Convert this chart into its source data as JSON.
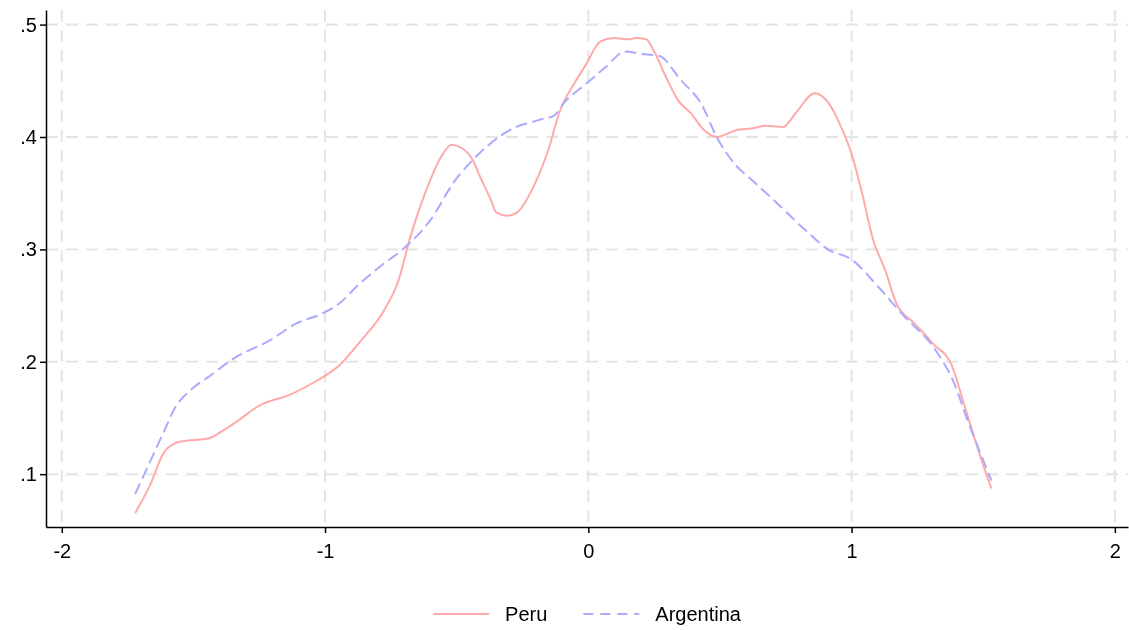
{
  "chart_data": {
    "type": "line",
    "xlim": [
      -2.06,
      2.05
    ],
    "ylim": [
      0.053,
      0.513
    ],
    "xticks": [
      -2,
      -1,
      0,
      1,
      2
    ],
    "yticks": [
      {
        "value": 0.1,
        "label": ".1"
      },
      {
        "value": 0.2,
        "label": ".2"
      },
      {
        "value": 0.3,
        "label": ".3"
      },
      {
        "value": 0.4,
        "label": ".4"
      },
      {
        "value": 0.5,
        "label": ".5"
      }
    ],
    "grid": true,
    "legend": "bottom",
    "marker": "none",
    "series": [
      {
        "name": "Peru",
        "color": "#ffaaaa",
        "line_style": "solid",
        "x": [
          -1.72,
          -1.665,
          -1.61,
          -1.55,
          -1.44,
          -1.4,
          -1.34,
          -1.25,
          -1.13,
          -1.04,
          -0.94,
          -0.87,
          -0.77,
          -0.72,
          -0.68,
          -0.62,
          -0.56,
          -0.52,
          -0.48,
          -0.44,
          -0.41,
          -0.37,
          -0.35,
          -0.31,
          -0.27,
          -0.21,
          -0.15,
          -0.11,
          -0.05,
          -0.01,
          0.046,
          0.1,
          0.15,
          0.18,
          0.22,
          0.25,
          0.3,
          0.34,
          0.39,
          0.44,
          0.49,
          0.56,
          0.63,
          0.67,
          0.74,
          0.79,
          0.86,
          0.91,
          0.96,
          1.0,
          1.04,
          1.08,
          1.13,
          1.17,
          1.24,
          1.31,
          1.38,
          1.43,
          1.5,
          1.53
        ],
        "values": [
          0.066,
          0.09,
          0.12,
          0.129,
          0.132,
          0.137,
          0.146,
          0.161,
          0.171,
          0.182,
          0.198,
          0.217,
          0.248,
          0.273,
          0.308,
          0.35,
          0.382,
          0.393,
          0.39,
          0.38,
          0.364,
          0.344,
          0.333,
          0.33,
          0.333,
          0.355,
          0.39,
          0.422,
          0.449,
          0.464,
          0.485,
          0.488,
          0.487,
          0.488,
          0.487,
          0.476,
          0.451,
          0.433,
          0.421,
          0.406,
          0.4,
          0.406,
          0.408,
          0.41,
          0.409,
          0.422,
          0.439,
          0.431,
          0.409,
          0.385,
          0.35,
          0.31,
          0.28,
          0.252,
          0.234,
          0.216,
          0.197,
          0.16,
          0.108,
          0.088
        ]
      },
      {
        "name": "Argentina",
        "color": "#aaaaff",
        "line_style": "dashed",
        "x": [
          -1.72,
          -1.665,
          -1.61,
          -1.57,
          -1.51,
          -1.44,
          -1.34,
          -1.21,
          -1.11,
          -1.01,
          -0.94,
          -0.88,
          -0.79,
          -0.7,
          -0.6,
          -0.51,
          -0.42,
          -0.3,
          -0.19,
          -0.13,
          -0.09,
          -0.01,
          0.065,
          0.14,
          0.2,
          0.27,
          0.35,
          0.43,
          0.49,
          0.56,
          0.62,
          0.69,
          0.83,
          0.91,
          1.0,
          1.1,
          1.19,
          1.32,
          1.38,
          1.45,
          1.53
        ],
        "values": [
          0.083,
          0.111,
          0.139,
          0.159,
          0.175,
          0.187,
          0.204,
          0.219,
          0.234,
          0.243,
          0.253,
          0.267,
          0.285,
          0.301,
          0.326,
          0.36,
          0.384,
          0.406,
          0.415,
          0.419,
          0.431,
          0.447,
          0.462,
          0.476,
          0.474,
          0.472,
          0.451,
          0.429,
          0.399,
          0.375,
          0.362,
          0.347,
          0.316,
          0.3,
          0.291,
          0.267,
          0.243,
          0.21,
          0.186,
          0.142,
          0.095
        ]
      }
    ]
  }
}
